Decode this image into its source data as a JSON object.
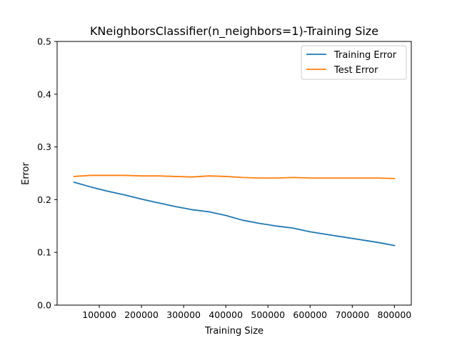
{
  "chart_data": {
    "type": "line",
    "title": "KNeighborsClassifier(n_neighbors=1)-Training Size",
    "xlabel": "Training Size",
    "ylabel": "Error",
    "xlim": [
      0,
      840000
    ],
    "ylim": [
      0,
      0.5
    ],
    "xticks": [
      100000,
      200000,
      300000,
      400000,
      500000,
      600000,
      700000,
      800000
    ],
    "xtick_labels": [
      "100000",
      "200000",
      "300000",
      "400000",
      "500000",
      "600000",
      "700000",
      "800000"
    ],
    "yticks": [
      0.0,
      0.1,
      0.2,
      0.3,
      0.4,
      0.5
    ],
    "ytick_labels": [
      "0.0",
      "0.1",
      "0.2",
      "0.3",
      "0.4",
      "0.5"
    ],
    "legend_position": "top-right",
    "x": [
      40000,
      80000,
      120000,
      160000,
      200000,
      240000,
      280000,
      320000,
      360000,
      400000,
      440000,
      480000,
      520000,
      560000,
      600000,
      640000,
      680000,
      720000,
      760000,
      800000
    ],
    "series": [
      {
        "name": "Training Error",
        "color": "#1f77b4",
        "values": [
          0.233,
          0.224,
          0.216,
          0.209,
          0.201,
          0.194,
          0.187,
          0.181,
          0.177,
          0.17,
          0.161,
          0.155,
          0.15,
          0.146,
          0.139,
          0.134,
          0.129,
          0.124,
          0.119,
          0.113
        ]
      },
      {
        "name": "Test Error",
        "color": "#ff7f0e",
        "values": [
          0.244,
          0.246,
          0.246,
          0.246,
          0.245,
          0.245,
          0.244,
          0.243,
          0.245,
          0.244,
          0.242,
          0.241,
          0.241,
          0.242,
          0.241,
          0.241,
          0.241,
          0.241,
          0.241,
          0.24
        ]
      }
    ]
  }
}
